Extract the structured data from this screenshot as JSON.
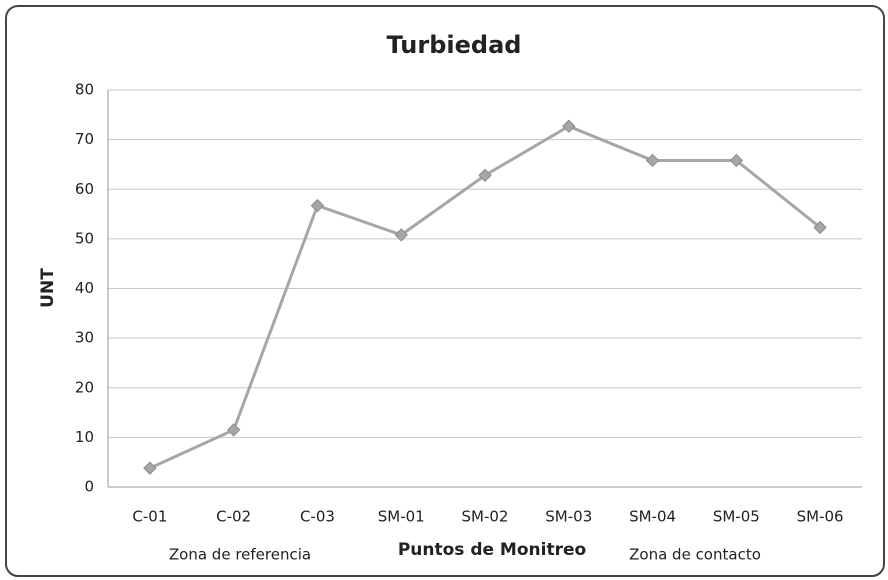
{
  "chart_data": {
    "type": "line",
    "title": "Turbiedad",
    "y_label": "UNT",
    "x_label": "Puntos de Monitreo",
    "annotations": [
      "Zona de referencia",
      "Zona de contacto"
    ],
    "categories": [
      "C-01",
      "C-02",
      "C-03",
      "SM-01",
      "SM-02",
      "SM-03",
      "SM-04",
      "SM-05",
      "SM-06"
    ],
    "series": [
      {
        "name": "Turbiedad",
        "color": "#a6a6a6",
        "values": [
          3.8,
          11.5,
          56.7,
          50.8,
          62.8,
          72.7,
          65.8,
          65.8,
          52.3
        ]
      }
    ],
    "ylim": [
      0,
      80
    ],
    "yticks": [
      0,
      10,
      20,
      30,
      40,
      50,
      60,
      70,
      80
    ],
    "grid": true,
    "legend": false
  }
}
